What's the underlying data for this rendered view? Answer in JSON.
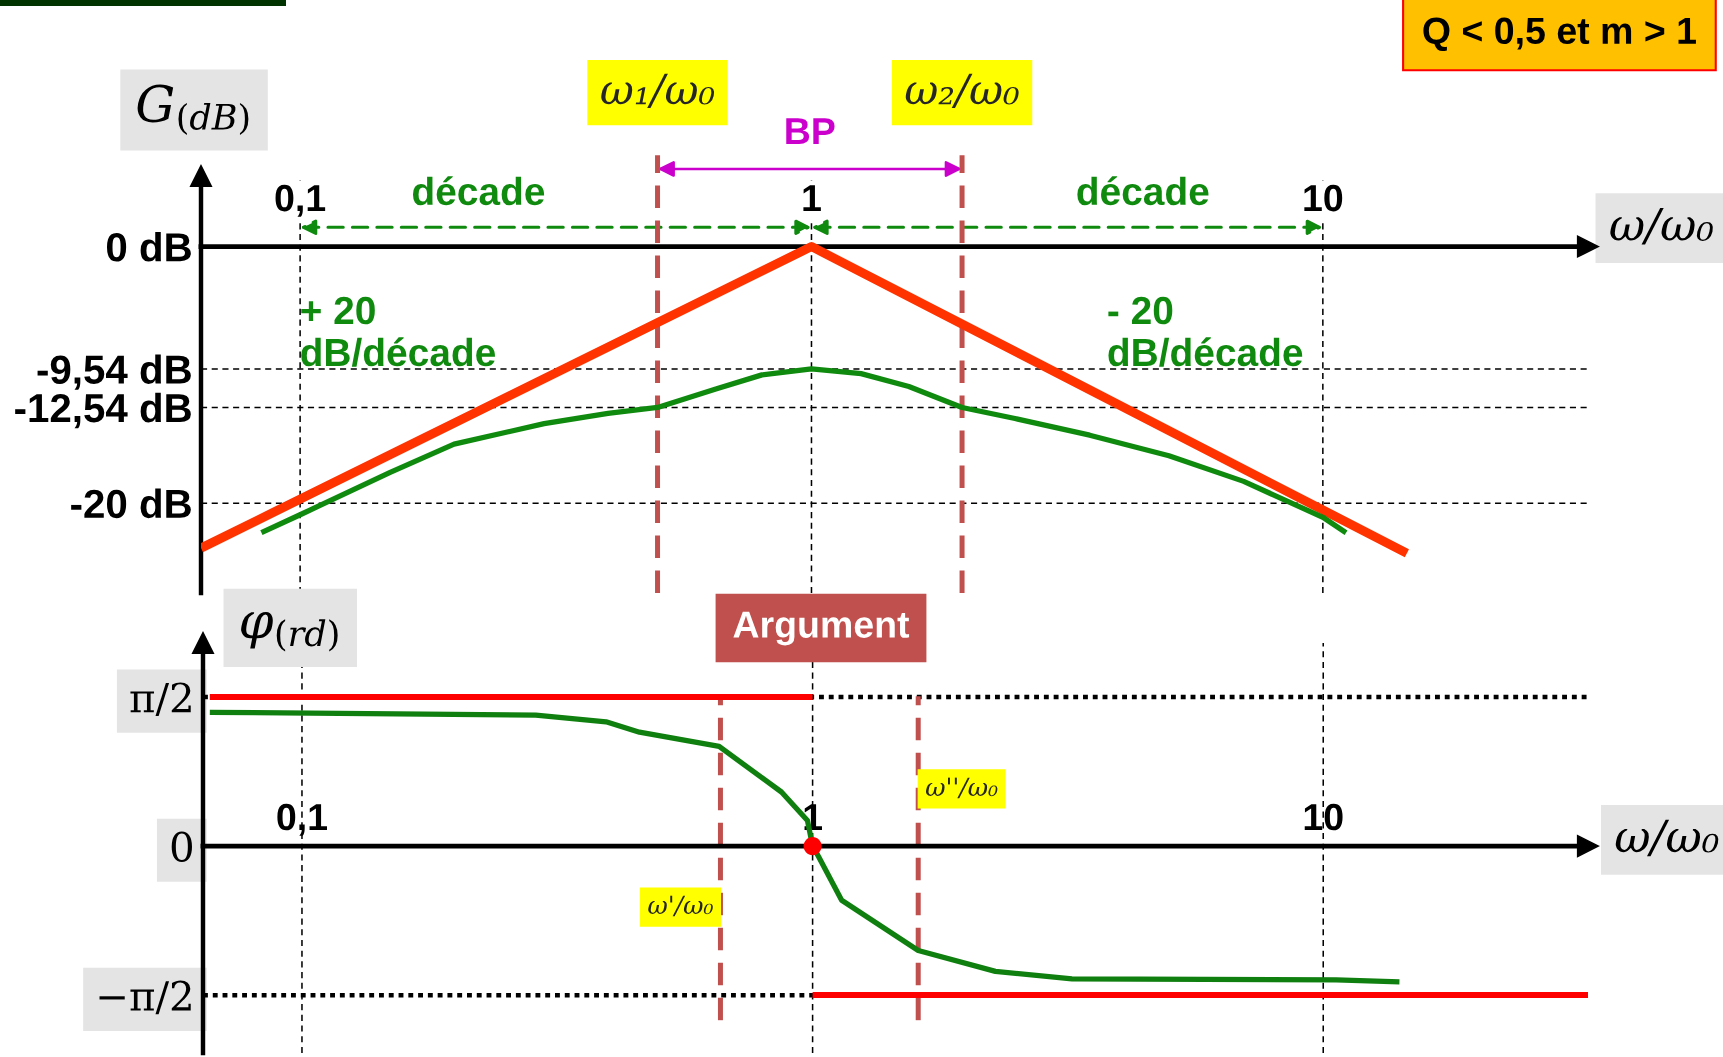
{
  "chart_data": [
    {
      "type": "line",
      "title": "Q < 0,5 et m > 1",
      "xlabel": "ω/ω₀",
      "ylabel": "G$_{(dB)}$",
      "log": "x",
      "grid": true,
      "xlim": [
        0.064,
        33
      ],
      "xticks": [
        {
          "value": 0.1,
          "label": "0,1"
        },
        1,
        10
      ],
      "ylim": [
        -27,
        5.5
      ],
      "yticks": [
        {
          "value": 0,
          "label": "0 dB"
        },
        {
          "value": -9.54,
          "label": "-9,54 dB"
        },
        {
          "value": -12.54,
          "label": "-12,54 dB"
        },
        {
          "value": -20,
          "label": "-20 dB"
        }
      ],
      "series": [
        {
          "color": "#ff3300",
          "x": [
            0.064,
            1,
            14.6
          ],
          "values": [
            -23.5,
            0,
            -23.9
          ]
        },
        {
          "color": "#0f8a0f",
          "x": [
            0.084,
            0.1,
            0.15,
            0.2,
            0.3,
            0.4,
            0.5,
            0.65,
            0.8,
            1,
            1.25,
            1.55,
            1.97,
            2.5,
            3.5,
            5,
            7,
            10,
            11.1
          ],
          "values": [
            -22.3,
            -20.9,
            -17.6,
            -15.4,
            -13.8,
            -13.0,
            -12.54,
            -11.1,
            -10.0,
            -9.54,
            -9.9,
            -10.9,
            -12.54,
            -13.4,
            -14.7,
            -16.3,
            -18.3,
            -21.1,
            -22.3
          ]
        }
      ],
      "ref_lines": [
        {
          "axis": "x",
          "value": 0.5,
          "label": "ω₁/ω₀",
          "color": "#c0504d",
          "line_style": "dashed"
        },
        {
          "axis": "x",
          "value": 1.97,
          "label": "ω₂/ω₀",
          "color": "#c0504d",
          "line_style": "dashed"
        }
      ],
      "annotations": [
        "BP",
        "décade",
        "décade",
        "+ 20\ndB/décade",
        "- 20\ndB/décade"
      ]
    },
    {
      "type": "line",
      "title": "Argument",
      "xlabel": "ω/ω₀",
      "ylabel": "φ$_{(rd)}$",
      "log": "x",
      "grid": "x",
      "xlim": [
        0.064,
        33
      ],
      "xticks": [
        {
          "value": 0.1,
          "label": "0,1"
        },
        1,
        10
      ],
      "ylim": [
        -2.18,
        2.14
      ],
      "yticks": [
        {
          "value": 1.571,
          "label": "π/2"
        },
        0,
        {
          "value": -1.571,
          "label": "−π/2"
        }
      ],
      "series": [
        {
          "color": "#ff0000",
          "x": [
            0.066,
            1
          ],
          "values": [
            1.57,
            1.57
          ]
        },
        {
          "color": "#ff0000",
          "x": [
            1,
            33
          ],
          "values": [
            -1.57,
            -1.57
          ]
        },
        {
          "color": "#0f7f0f",
          "x": [
            0.066,
            0.287,
            0.394,
            0.458,
            0.656,
            0.869,
            0.977,
            1.0,
            1.027,
            1.14,
            1.61,
            2.28,
            3.22,
            10.6,
            14.1
          ],
          "values": [
            1.41,
            1.38,
            1.31,
            1.2,
            1.05,
            0.57,
            0.27,
            0,
            -0.11,
            -0.57,
            -1.1,
            -1.32,
            -1.4,
            -1.41,
            -1.43
          ]
        },
        {
          "type": "scatter",
          "color": "#ff0000",
          "marker": "circle",
          "x": [
            1
          ],
          "values": [
            0
          ]
        }
      ],
      "ref_lines": [
        {
          "axis": "y",
          "value": 1.571,
          "color": "#000000",
          "line_style": "dotted"
        },
        {
          "axis": "y",
          "value": -1.571,
          "color": "#000000",
          "line_style": "dotted"
        },
        {
          "axis": "x",
          "value": 0.66,
          "label": "ω'/ω₀",
          "color": "#c0504d",
          "line_style": "dashed"
        },
        {
          "axis": "x",
          "value": 1.61,
          "label": "ω''/ω₀",
          "color": "#c0504d",
          "line_style": "dashed"
        }
      ]
    }
  ]
}
